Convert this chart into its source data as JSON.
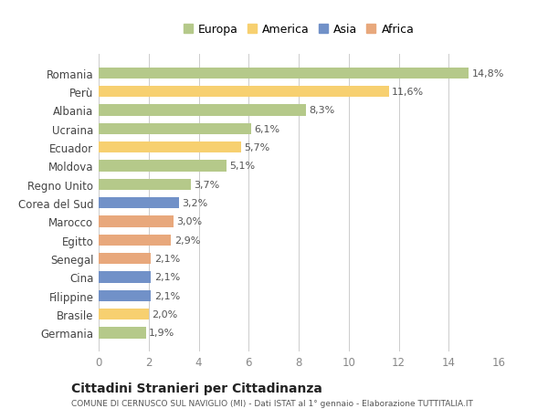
{
  "countries": [
    "Germania",
    "Brasile",
    "Filippine",
    "Cina",
    "Senegal",
    "Egitto",
    "Marocco",
    "Corea del Sud",
    "Regno Unito",
    "Moldova",
    "Ecuador",
    "Ucraina",
    "Albania",
    "Perù",
    "Romania"
  ],
  "values": [
    1.9,
    2.0,
    2.1,
    2.1,
    2.1,
    2.9,
    3.0,
    3.2,
    3.7,
    5.1,
    5.7,
    6.1,
    8.3,
    11.6,
    14.8
  ],
  "labels": [
    "1,9%",
    "2,0%",
    "2,1%",
    "2,1%",
    "2,1%",
    "2,9%",
    "3,0%",
    "3,2%",
    "3,7%",
    "5,1%",
    "5,7%",
    "6,1%",
    "8,3%",
    "11,6%",
    "14,8%"
  ],
  "colors": [
    "#b5c98a",
    "#f7d070",
    "#7191c8",
    "#7191c8",
    "#e8a87c",
    "#e8a87c",
    "#e8a87c",
    "#7191c8",
    "#b5c98a",
    "#b5c98a",
    "#f7d070",
    "#b5c98a",
    "#b5c98a",
    "#f7d070",
    "#b5c98a"
  ],
  "legend_labels": [
    "Europa",
    "America",
    "Asia",
    "Africa"
  ],
  "legend_colors": [
    "#b5c98a",
    "#f7d070",
    "#7191c8",
    "#e8a87c"
  ],
  "title": "Cittadini Stranieri per Cittadinanza",
  "subtitle": "COMUNE DI CERNUSCO SUL NAVIGLIO (MI) - Dati ISTAT al 1° gennaio - Elaborazione TUTTITALIA.IT",
  "xlim": [
    0,
    16
  ],
  "xticks": [
    0,
    2,
    4,
    6,
    8,
    10,
    12,
    14,
    16
  ],
  "background_color": "#ffffff",
  "grid_color": "#cccccc",
  "bar_height": 0.6
}
